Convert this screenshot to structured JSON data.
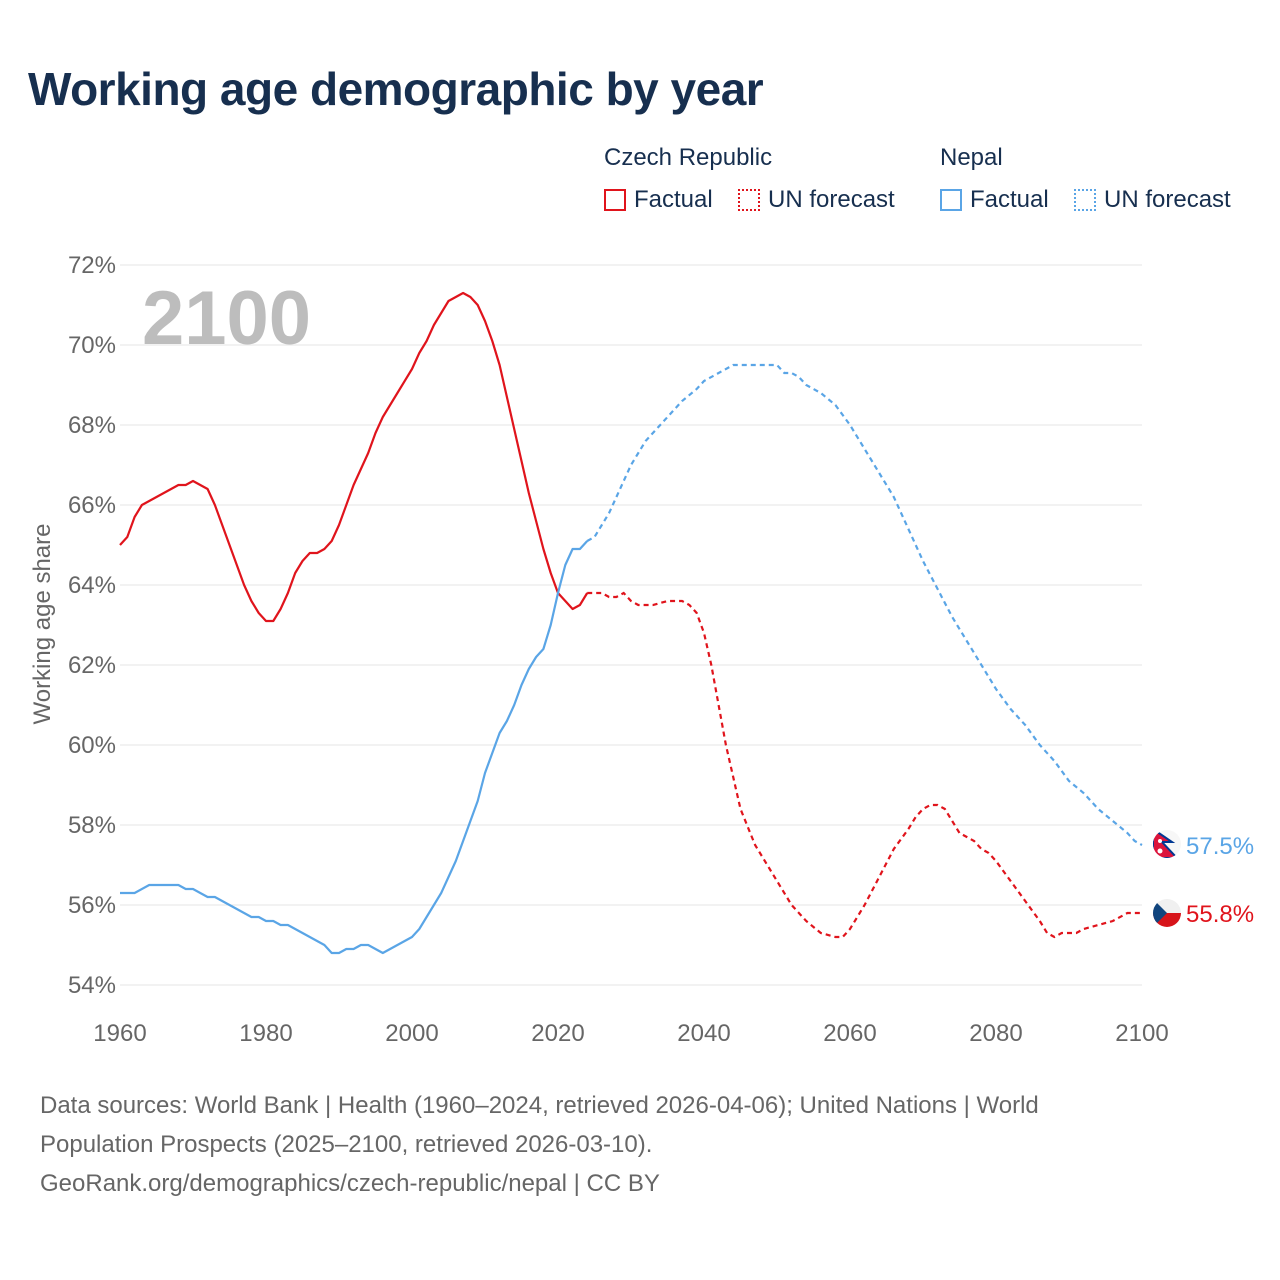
{
  "title": "Working age demographic by year",
  "legend": {
    "groups": [
      {
        "name": "Czech Republic",
        "color": "#e0141c",
        "factual_label": "Factual",
        "forecast_label": "UN forecast"
      },
      {
        "name": "Nepal",
        "color": "#5aa5e6",
        "factual_label": "Factual",
        "forecast_label": "UN forecast"
      }
    ]
  },
  "chart_data": {
    "type": "line",
    "title": "Working age demographic by year",
    "xlabel": "",
    "ylabel": "Working age share",
    "xlim": [
      1960,
      2100
    ],
    "ylim": [
      54,
      72
    ],
    "x_ticks": [
      "1960",
      "1980",
      "2000",
      "2020",
      "2040",
      "2060",
      "2080",
      "2100"
    ],
    "y_ticks": [
      "54%",
      "56%",
      "58%",
      "60%",
      "62%",
      "64%",
      "66%",
      "68%",
      "70%",
      "72%"
    ],
    "grid": true,
    "annotation_year": "2100",
    "series": [
      {
        "name": "Czech Republic",
        "color": "#e0141c",
        "factual": [
          [
            1960,
            65.0
          ],
          [
            1961,
            65.2
          ],
          [
            1962,
            65.7
          ],
          [
            1963,
            66.0
          ],
          [
            1965,
            66.2
          ],
          [
            1967,
            66.4
          ],
          [
            1968,
            66.5
          ],
          [
            1969,
            66.5
          ],
          [
            1970,
            66.6
          ],
          [
            1971,
            66.5
          ],
          [
            1972,
            66.4
          ],
          [
            1973,
            66.0
          ],
          [
            1975,
            65.0
          ],
          [
            1977,
            64.0
          ],
          [
            1978,
            63.6
          ],
          [
            1979,
            63.3
          ],
          [
            1980,
            63.1
          ],
          [
            1981,
            63.1
          ],
          [
            1982,
            63.4
          ],
          [
            1983,
            63.8
          ],
          [
            1984,
            64.3
          ],
          [
            1985,
            64.6
          ],
          [
            1986,
            64.8
          ],
          [
            1987,
            64.8
          ],
          [
            1988,
            64.9
          ],
          [
            1989,
            65.1
          ],
          [
            1990,
            65.5
          ],
          [
            1991,
            66.0
          ],
          [
            1992,
            66.5
          ],
          [
            1993,
            66.9
          ],
          [
            1994,
            67.3
          ],
          [
            1995,
            67.8
          ],
          [
            1996,
            68.2
          ],
          [
            1998,
            68.8
          ],
          [
            2000,
            69.4
          ],
          [
            2001,
            69.8
          ],
          [
            2002,
            70.1
          ],
          [
            2003,
            70.5
          ],
          [
            2004,
            70.8
          ],
          [
            2005,
            71.1
          ],
          [
            2006,
            71.2
          ],
          [
            2007,
            71.3
          ],
          [
            2008,
            71.2
          ],
          [
            2009,
            71.0
          ],
          [
            2010,
            70.6
          ],
          [
            2011,
            70.1
          ],
          [
            2012,
            69.5
          ],
          [
            2013,
            68.7
          ],
          [
            2014,
            67.9
          ],
          [
            2015,
            67.1
          ],
          [
            2016,
            66.3
          ],
          [
            2017,
            65.6
          ],
          [
            2018,
            64.9
          ],
          [
            2019,
            64.3
          ],
          [
            2020,
            63.8
          ],
          [
            2021,
            63.6
          ],
          [
            2022,
            63.4
          ],
          [
            2023,
            63.5
          ],
          [
            2024,
            63.8
          ]
        ],
        "forecast": [
          [
            2024,
            63.8
          ],
          [
            2025,
            63.8
          ],
          [
            2026,
            63.8
          ],
          [
            2027,
            63.7
          ],
          [
            2028,
            63.7
          ],
          [
            2029,
            63.8
          ],
          [
            2030,
            63.6
          ],
          [
            2031,
            63.5
          ],
          [
            2033,
            63.5
          ],
          [
            2035,
            63.6
          ],
          [
            2037,
            63.6
          ],
          [
            2038,
            63.5
          ],
          [
            2039,
            63.3
          ],
          [
            2040,
            62.8
          ],
          [
            2041,
            62.0
          ],
          [
            2042,
            61.0
          ],
          [
            2043,
            60.0
          ],
          [
            2044,
            59.2
          ],
          [
            2045,
            58.4
          ],
          [
            2047,
            57.5
          ],
          [
            2050,
            56.6
          ],
          [
            2052,
            56.0
          ],
          [
            2054,
            55.6
          ],
          [
            2056,
            55.3
          ],
          [
            2058,
            55.2
          ],
          [
            2059,
            55.2
          ],
          [
            2060,
            55.4
          ],
          [
            2062,
            56.0
          ],
          [
            2064,
            56.7
          ],
          [
            2066,
            57.4
          ],
          [
            2068,
            57.9
          ],
          [
            2069,
            58.2
          ],
          [
            2070,
            58.4
          ],
          [
            2071,
            58.5
          ],
          [
            2072,
            58.5
          ],
          [
            2073,
            58.4
          ],
          [
            2074,
            58.1
          ],
          [
            2075,
            57.8
          ],
          [
            2077,
            57.6
          ],
          [
            2078,
            57.4
          ],
          [
            2079,
            57.3
          ],
          [
            2080,
            57.1
          ],
          [
            2082,
            56.6
          ],
          [
            2084,
            56.1
          ],
          [
            2086,
            55.6
          ],
          [
            2087,
            55.3
          ],
          [
            2088,
            55.2
          ],
          [
            2089,
            55.3
          ],
          [
            2091,
            55.3
          ],
          [
            2092,
            55.4
          ],
          [
            2094,
            55.5
          ],
          [
            2096,
            55.6
          ],
          [
            2098,
            55.8
          ],
          [
            2100,
            55.8
          ]
        ],
        "end_value_label": "55.8%"
      },
      {
        "name": "Nepal",
        "color": "#5aa5e6",
        "factual": [
          [
            1960,
            56.3
          ],
          [
            1962,
            56.3
          ],
          [
            1964,
            56.5
          ],
          [
            1966,
            56.5
          ],
          [
            1968,
            56.5
          ],
          [
            1969,
            56.4
          ],
          [
            1970,
            56.4
          ],
          [
            1972,
            56.2
          ],
          [
            1973,
            56.2
          ],
          [
            1975,
            56.0
          ],
          [
            1977,
            55.8
          ],
          [
            1978,
            55.7
          ],
          [
            1979,
            55.7
          ],
          [
            1980,
            55.6
          ],
          [
            1981,
            55.6
          ],
          [
            1982,
            55.5
          ],
          [
            1983,
            55.5
          ],
          [
            1985,
            55.3
          ],
          [
            1987,
            55.1
          ],
          [
            1988,
            55.0
          ],
          [
            1989,
            54.8
          ],
          [
            1990,
            54.8
          ],
          [
            1991,
            54.9
          ],
          [
            1992,
            54.9
          ],
          [
            1993,
            55.0
          ],
          [
            1994,
            55.0
          ],
          [
            1995,
            54.9
          ],
          [
            1996,
            54.8
          ],
          [
            1997,
            54.9
          ],
          [
            1999,
            55.1
          ],
          [
            2000,
            55.2
          ],
          [
            2001,
            55.4
          ],
          [
            2002,
            55.7
          ],
          [
            2003,
            56.0
          ],
          [
            2004,
            56.3
          ],
          [
            2005,
            56.7
          ],
          [
            2006,
            57.1
          ],
          [
            2007,
            57.6
          ],
          [
            2008,
            58.1
          ],
          [
            2009,
            58.6
          ],
          [
            2010,
            59.3
          ],
          [
            2011,
            59.8
          ],
          [
            2012,
            60.3
          ],
          [
            2013,
            60.6
          ],
          [
            2014,
            61.0
          ],
          [
            2015,
            61.5
          ],
          [
            2016,
            61.9
          ],
          [
            2017,
            62.2
          ],
          [
            2018,
            62.4
          ],
          [
            2019,
            63.0
          ],
          [
            2020,
            63.8
          ],
          [
            2021,
            64.5
          ],
          [
            2022,
            64.9
          ],
          [
            2023,
            64.9
          ],
          [
            2024,
            65.1
          ]
        ],
        "forecast": [
          [
            2024,
            65.1
          ],
          [
            2025,
            65.2
          ],
          [
            2026,
            65.5
          ],
          [
            2027,
            65.8
          ],
          [
            2028,
            66.2
          ],
          [
            2029,
            66.6
          ],
          [
            2030,
            67.0
          ],
          [
            2031,
            67.3
          ],
          [
            2032,
            67.6
          ],
          [
            2033,
            67.8
          ],
          [
            2035,
            68.2
          ],
          [
            2037,
            68.6
          ],
          [
            2039,
            68.9
          ],
          [
            2040,
            69.1
          ],
          [
            2042,
            69.3
          ],
          [
            2044,
            69.5
          ],
          [
            2046,
            69.5
          ],
          [
            2048,
            69.5
          ],
          [
            2050,
            69.5
          ],
          [
            2051,
            69.3
          ],
          [
            2052,
            69.3
          ],
          [
            2053,
            69.2
          ],
          [
            2054,
            69.0
          ],
          [
            2056,
            68.8
          ],
          [
            2058,
            68.5
          ],
          [
            2060,
            68.0
          ],
          [
            2062,
            67.4
          ],
          [
            2064,
            66.8
          ],
          [
            2066,
            66.2
          ],
          [
            2068,
            65.4
          ],
          [
            2070,
            64.6
          ],
          [
            2072,
            63.9
          ],
          [
            2074,
            63.2
          ],
          [
            2076,
            62.6
          ],
          [
            2078,
            62.0
          ],
          [
            2080,
            61.4
          ],
          [
            2082,
            60.9
          ],
          [
            2084,
            60.5
          ],
          [
            2086,
            60.0
          ],
          [
            2088,
            59.6
          ],
          [
            2090,
            59.1
          ],
          [
            2092,
            58.8
          ],
          [
            2094,
            58.4
          ],
          [
            2096,
            58.1
          ],
          [
            2098,
            57.8
          ],
          [
            2099,
            57.6
          ],
          [
            2100,
            57.5
          ]
        ],
        "end_value_label": "57.5%"
      }
    ]
  },
  "footer": {
    "line1": "Data sources: World Bank | Health (1960–2024, retrieved 2026-04-06); United Nations | World",
    "line2": "Population Prospects (2025–2100, retrieved 2026-03-10).",
    "line3": "GeoRank.org/demographics/czech-republic/nepal | CC BY"
  }
}
